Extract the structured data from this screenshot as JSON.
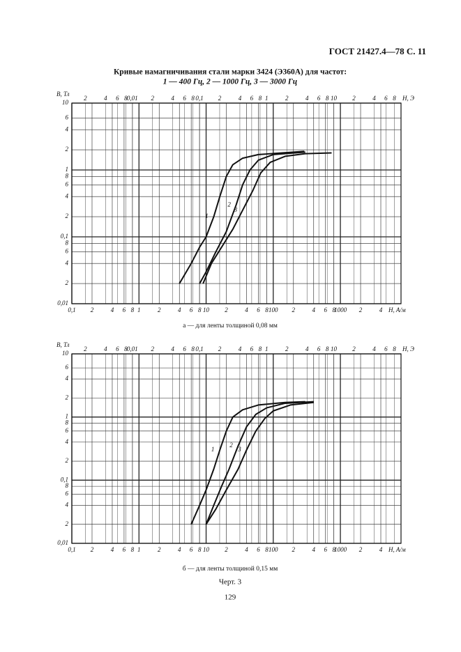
{
  "header": "ГОСТ 21427.4—78 С. 11",
  "title": [
    "Кривые намагничивания стали марки 3424 (Э360А) для частот:",
    "1 — 400 Гц, 2 — 1000 Гц, 3 — 3000 Гц"
  ],
  "chart_data": [
    {
      "type": "line",
      "xscale": "log",
      "yscale": "log",
      "grid": true,
      "caption": "а — для ленты толщиной 0,08 мм",
      "ylabel": "B, Тл",
      "xlabel": "H, A/м",
      "x2label": "H, Э",
      "xlim": [
        0.1,
        8000
      ],
      "ylim": [
        0.01,
        10
      ],
      "x2lim": [
        0.0012566,
        100.53
      ],
      "yticks": [
        10,
        6,
        4,
        2,
        1,
        {
          "value": 0.8,
          "label": "8"
        },
        {
          "value": 0.6,
          "label": "6"
        },
        {
          "value": 0.4,
          "label": "4"
        },
        {
          "value": 0.2,
          "label": "2"
        },
        {
          "value": 0.1,
          "label": "0,1"
        },
        {
          "value": 0.08,
          "label": "8"
        },
        {
          "value": 0.06,
          "label": "6"
        },
        {
          "value": 0.04,
          "label": "4"
        },
        {
          "value": 0.02,
          "label": "2"
        },
        {
          "value": 0.01,
          "label": "0,01"
        }
      ],
      "xticks": [
        {
          "value": 0.1,
          "label": "0,1"
        },
        {
          "value": 0.2,
          "label": "2"
        },
        {
          "value": 0.4,
          "label": "4"
        },
        {
          "value": 0.6,
          "label": "6"
        },
        {
          "value": 0.8,
          "label": "8"
        },
        1,
        2,
        4,
        6,
        8,
        10,
        {
          "value": 20,
          "label": "2"
        },
        {
          "value": 40,
          "label": "4"
        },
        {
          "value": 60,
          "label": "6"
        },
        {
          "value": 80,
          "label": "8"
        },
        100,
        {
          "value": 200,
          "label": "2"
        },
        {
          "value": 400,
          "label": "4"
        },
        {
          "value": 600,
          "label": "6"
        },
        {
          "value": 800,
          "label": "8"
        },
        1000,
        {
          "value": 2000,
          "label": "2"
        },
        {
          "value": 4000,
          "label": "4"
        }
      ],
      "x2ticks": [
        {
          "value": 0.002,
          "label": "2"
        },
        {
          "value": 0.004,
          "label": "4"
        },
        {
          "value": 0.006,
          "label": "6"
        },
        {
          "value": 0.008,
          "label": "8"
        },
        {
          "value": 0.01,
          "label": "0,01"
        },
        {
          "value": 0.02,
          "label": "2"
        },
        {
          "value": 0.04,
          "label": "4"
        },
        {
          "value": 0.06,
          "label": "6"
        },
        {
          "value": 0.08,
          "label": "8"
        },
        {
          "value": 0.1,
          "label": "0,1"
        },
        {
          "value": 0.2,
          "label": "2"
        },
        {
          "value": 0.4,
          "label": "4"
        },
        {
          "value": 0.6,
          "label": "6"
        },
        {
          "value": 0.8,
          "label": "8"
        },
        1,
        2,
        4,
        6,
        8,
        10,
        {
          "value": 20,
          "label": "2"
        },
        {
          "value": 40,
          "label": "4"
        },
        {
          "value": 60,
          "label": "6"
        },
        {
          "value": 80,
          "label": "8"
        }
      ],
      "series": [
        {
          "name": "1",
          "color": "#111111",
          "x": [
            4,
            6,
            8,
            10,
            13,
            16,
            20,
            25,
            35,
            60,
            200,
            290
          ],
          "values": [
            0.02,
            0.04,
            0.07,
            0.1,
            0.2,
            0.4,
            0.8,
            1.2,
            1.5,
            1.7,
            1.85,
            1.9
          ]
        },
        {
          "name": "2",
          "color": "#111111",
          "x": [
            8,
            10,
            14,
            20,
            28,
            35,
            45,
            60,
            100,
            300
          ],
          "values": [
            0.02,
            0.03,
            0.06,
            0.12,
            0.3,
            0.6,
            1.0,
            1.4,
            1.7,
            1.85
          ]
        },
        {
          "name": "3",
          "color": "#111111",
          "x": [
            9,
            12,
            17,
            25,
            35,
            50,
            65,
            90,
            150,
            300,
            740
          ],
          "values": [
            0.02,
            0.04,
            0.07,
            0.13,
            0.25,
            0.5,
            0.9,
            1.3,
            1.6,
            1.75,
            1.8
          ]
        }
      ]
    },
    {
      "type": "line",
      "xscale": "log",
      "yscale": "log",
      "grid": true,
      "caption": "б — для ленты толщиной 0,15 мм",
      "ylabel": "B, Тл",
      "xlabel": "H, A/м",
      "x2label": "H, Э",
      "xlim": [
        0.1,
        8000
      ],
      "ylim": [
        0.01,
        10
      ],
      "x2lim": [
        0.0012566,
        100.53
      ],
      "yticks": [
        10,
        6,
        4,
        2,
        1,
        {
          "value": 0.8,
          "label": "8"
        },
        {
          "value": 0.6,
          "label": "6"
        },
        {
          "value": 0.4,
          "label": "4"
        },
        {
          "value": 0.2,
          "label": "2"
        },
        {
          "value": 0.1,
          "label": "0,1"
        },
        {
          "value": 0.08,
          "label": "8"
        },
        {
          "value": 0.06,
          "label": "6"
        },
        {
          "value": 0.04,
          "label": "4"
        },
        {
          "value": 0.02,
          "label": "2"
        },
        {
          "value": 0.01,
          "label": "0,01"
        }
      ],
      "xticks": [
        {
          "value": 0.1,
          "label": "0,1"
        },
        {
          "value": 0.2,
          "label": "2"
        },
        {
          "value": 0.4,
          "label": "4"
        },
        {
          "value": 0.6,
          "label": "6"
        },
        {
          "value": 0.8,
          "label": "8"
        },
        1,
        2,
        4,
        6,
        8,
        10,
        {
          "value": 20,
          "label": "2"
        },
        {
          "value": 40,
          "label": "4"
        },
        {
          "value": 60,
          "label": "6"
        },
        {
          "value": 80,
          "label": "8"
        },
        100,
        {
          "value": 200,
          "label": "2"
        },
        {
          "value": 400,
          "label": "4"
        },
        {
          "value": 600,
          "label": "6"
        },
        {
          "value": 800,
          "label": "8"
        },
        1000,
        {
          "value": 2000,
          "label": "2"
        },
        {
          "value": 4000,
          "label": "4"
        }
      ],
      "x2ticks": [
        {
          "value": 0.002,
          "label": "2"
        },
        {
          "value": 0.004,
          "label": "4"
        },
        {
          "value": 0.006,
          "label": "6"
        },
        {
          "value": 0.008,
          "label": "8"
        },
        {
          "value": 0.01,
          "label": "0,01"
        },
        {
          "value": 0.02,
          "label": "2"
        },
        {
          "value": 0.04,
          "label": "4"
        },
        {
          "value": 0.06,
          "label": "6"
        },
        {
          "value": 0.08,
          "label": "8"
        },
        {
          "value": 0.1,
          "label": "0,1"
        },
        {
          "value": 0.2,
          "label": "2"
        },
        {
          "value": 0.4,
          "label": "4"
        },
        {
          "value": 0.6,
          "label": "6"
        },
        {
          "value": 0.8,
          "label": "8"
        },
        1,
        2,
        4,
        6,
        8,
        10,
        {
          "value": 20,
          "label": "2"
        },
        {
          "value": 40,
          "label": "4"
        },
        {
          "value": 60,
          "label": "6"
        },
        {
          "value": 80,
          "label": "8"
        }
      ],
      "series": [
        {
          "name": "1",
          "color": "#111111",
          "x": [
            6,
            8,
            10,
            13,
            16,
            20,
            25,
            35,
            60,
            150,
            300
          ],
          "values": [
            0.02,
            0.04,
            0.07,
            0.15,
            0.3,
            0.6,
            1.0,
            1.3,
            1.55,
            1.7,
            1.75
          ]
        },
        {
          "name": "2",
          "color": "#111111",
          "x": [
            10,
            13,
            17,
            22,
            30,
            40,
            55,
            80,
            150,
            400
          ],
          "values": [
            0.02,
            0.04,
            0.08,
            0.15,
            0.35,
            0.7,
            1.1,
            1.4,
            1.65,
            1.75
          ]
        },
        {
          "name": "3",
          "color": "#111111",
          "x": [
            10,
            14,
            20,
            30,
            40,
            55,
            75,
            100,
            180,
            400
          ],
          "values": [
            0.02,
            0.035,
            0.07,
            0.15,
            0.3,
            0.6,
            0.95,
            1.25,
            1.55,
            1.7
          ]
        }
      ]
    }
  ],
  "figure_label": "Черт. 3",
  "page_number": "129"
}
